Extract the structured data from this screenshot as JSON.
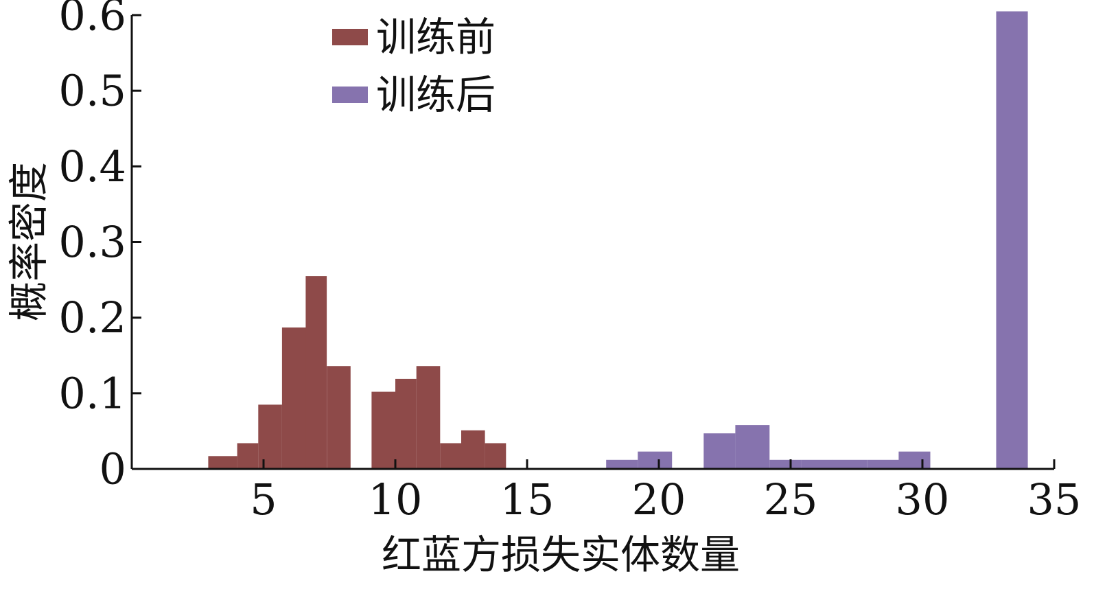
{
  "chart_data": {
    "type": "bar",
    "xlabel": "红蓝方损失实体数量",
    "ylabel": "概率密度",
    "xlim": [
      0,
      35
    ],
    "ylim": [
      0,
      0.6
    ],
    "xticks": [
      5,
      10,
      15,
      20,
      25,
      30,
      35
    ],
    "yticks": [
      {
        "value": 0,
        "label": "0"
      },
      {
        "value": 0.1,
        "label": "0.1"
      },
      {
        "value": 0.2,
        "label": "0.2"
      },
      {
        "value": 0.3,
        "label": "0.3"
      },
      {
        "value": 0.4,
        "label": "0.4"
      },
      {
        "value": 0.5,
        "label": "0.5"
      },
      {
        "value": 0.6,
        "label": "0.6"
      }
    ],
    "grid": false,
    "legend_position": "top-left",
    "series": [
      {
        "name": "训练前",
        "color": "#8e4a49",
        "bins": [
          {
            "x0": 2.9,
            "x1": 4.0,
            "value": 0.017
          },
          {
            "x0": 4.0,
            "x1": 4.8,
            "value": 0.034
          },
          {
            "x0": 4.8,
            "x1": 5.7,
            "value": 0.085
          },
          {
            "x0": 5.7,
            "x1": 6.6,
            "value": 0.187
          },
          {
            "x0": 6.6,
            "x1": 7.4,
            "value": 0.255
          },
          {
            "x0": 7.4,
            "x1": 8.3,
            "value": 0.136
          },
          {
            "x0": 9.1,
            "x1": 10.0,
            "value": 0.102
          },
          {
            "x0": 10.0,
            "x1": 10.8,
            "value": 0.119
          },
          {
            "x0": 10.8,
            "x1": 11.7,
            "value": 0.136
          },
          {
            "x0": 11.7,
            "x1": 12.5,
            "value": 0.034
          },
          {
            "x0": 12.5,
            "x1": 13.4,
            "value": 0.051
          },
          {
            "x0": 13.4,
            "x1": 14.2,
            "value": 0.034
          }
        ]
      },
      {
        "name": "训练后",
        "color": "#8673ae",
        "bins": [
          {
            "x0": 18.0,
            "x1": 19.2,
            "value": 0.012
          },
          {
            "x0": 19.2,
            "x1": 20.5,
            "value": 0.023
          },
          {
            "x0": 21.7,
            "x1": 22.9,
            "value": 0.047
          },
          {
            "x0": 22.9,
            "x1": 24.2,
            "value": 0.058
          },
          {
            "x0": 24.2,
            "x1": 25.4,
            "value": 0.012
          },
          {
            "x0": 25.4,
            "x1": 26.6,
            "value": 0.012
          },
          {
            "x0": 26.6,
            "x1": 27.9,
            "value": 0.012
          },
          {
            "x0": 27.9,
            "x1": 29.1,
            "value": 0.012
          },
          {
            "x0": 29.1,
            "x1": 30.3,
            "value": 0.023
          },
          {
            "x0": 32.8,
            "x1": 34.0,
            "value": 0.605
          }
        ]
      }
    ]
  }
}
